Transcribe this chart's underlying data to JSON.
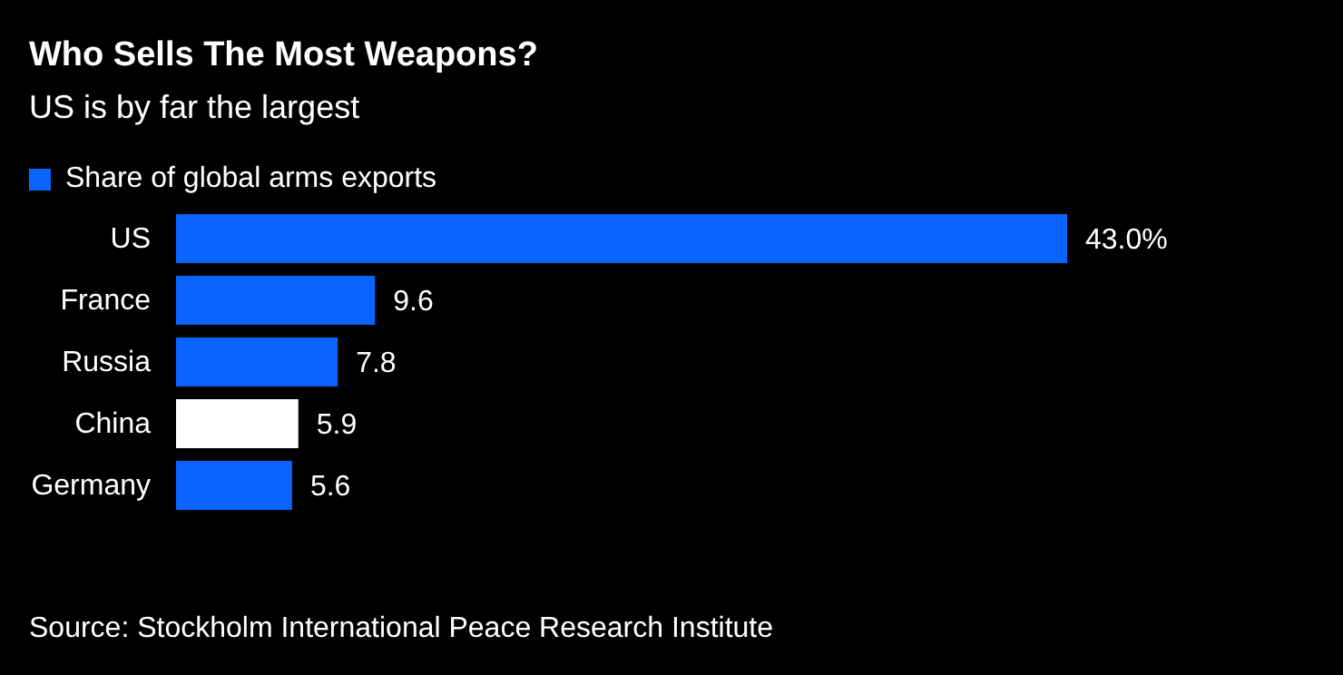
{
  "chart_data": {
    "type": "bar",
    "orientation": "horizontal",
    "title": "Who Sells The Most Weapons?",
    "subtitle": "US is by far the largest",
    "categories": [
      "US",
      "France",
      "Russia",
      "China",
      "Germany"
    ],
    "series": [
      {
        "name": "Share of global arms exports",
        "color": "#0a64ff",
        "colors": [
          "#0a64ff",
          "#0a64ff",
          "#0a64ff",
          "#ffffff",
          "#0a64ff"
        ],
        "values": [
          43.0,
          9.6,
          7.8,
          5.9,
          5.6
        ],
        "value_labels": [
          "43.0%",
          "9.6",
          "7.8",
          "5.9",
          "5.6"
        ]
      }
    ],
    "legend": "top left",
    "annotations": [
      "Source: Stockholm International Peace Research Institute"
    ]
  }
}
